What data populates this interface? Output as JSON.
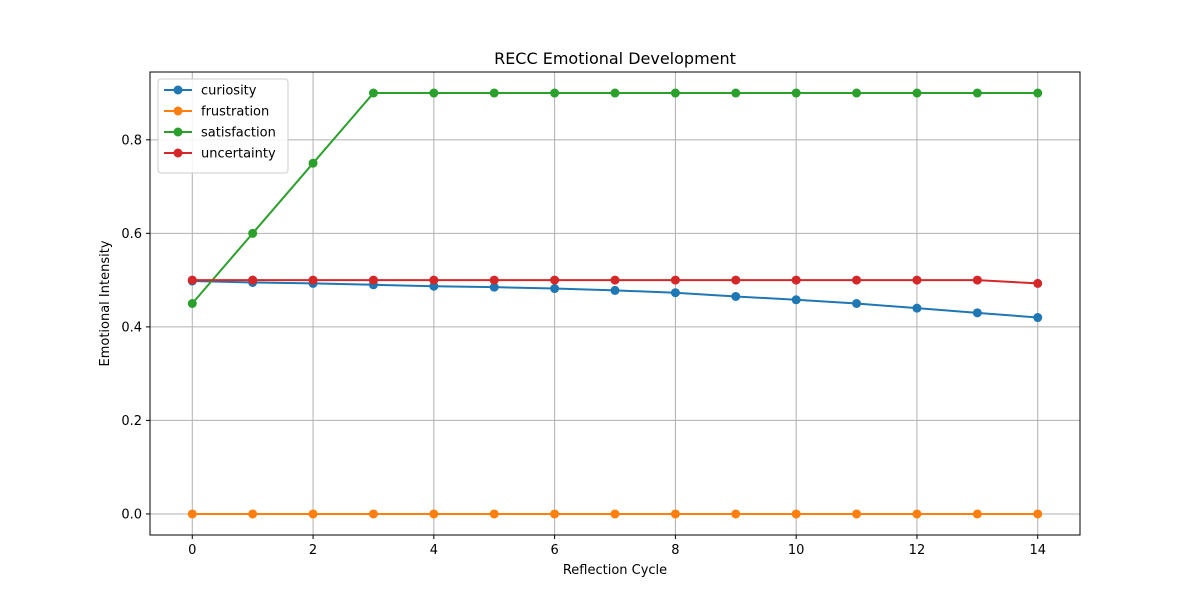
{
  "chart_data": {
    "type": "line",
    "title": "RECC Emotional Development",
    "xlabel": "Reflection Cycle",
    "ylabel": "Emotional Intensity",
    "x": [
      0,
      1,
      2,
      3,
      4,
      5,
      6,
      7,
      8,
      9,
      10,
      11,
      12,
      13,
      14
    ],
    "xlim": [
      -0.7,
      14.7
    ],
    "ylim": [
      -0.045,
      0.945
    ],
    "xticks": [
      0,
      2,
      4,
      6,
      8,
      10,
      12,
      14
    ],
    "xtick_labels": [
      "0",
      "2",
      "4",
      "6",
      "8",
      "10",
      "12",
      "14"
    ],
    "yticks": [
      0.0,
      0.2,
      0.4,
      0.6,
      0.8
    ],
    "ytick_labels": [
      "0.0",
      "0.2",
      "0.4",
      "0.6",
      "0.8"
    ],
    "grid": true,
    "legend_position": "top-left",
    "marker": "circle",
    "series": [
      {
        "name": "curiosity",
        "color": "#1f77b4",
        "values": [
          0.498,
          0.495,
          0.493,
          0.49,
          0.487,
          0.485,
          0.482,
          0.478,
          0.473,
          0.465,
          0.458,
          0.45,
          0.44,
          0.43,
          0.42
        ]
      },
      {
        "name": "frustration",
        "color": "#ff7f0e",
        "values": [
          0.0,
          0.0,
          0.0,
          0.0,
          0.0,
          0.0,
          0.0,
          0.0,
          0.0,
          0.0,
          0.0,
          0.0,
          0.0,
          0.0,
          0.0
        ]
      },
      {
        "name": "satisfaction",
        "color": "#2ca02c",
        "values": [
          0.45,
          0.6,
          0.75,
          0.9,
          0.9,
          0.9,
          0.9,
          0.9,
          0.9,
          0.9,
          0.9,
          0.9,
          0.9,
          0.9,
          0.9
        ]
      },
      {
        "name": "uncertainty",
        "color": "#d62728",
        "values": [
          0.5,
          0.5,
          0.5,
          0.5,
          0.5,
          0.5,
          0.5,
          0.5,
          0.5,
          0.5,
          0.5,
          0.5,
          0.5,
          0.5,
          0.493
        ]
      }
    ]
  }
}
